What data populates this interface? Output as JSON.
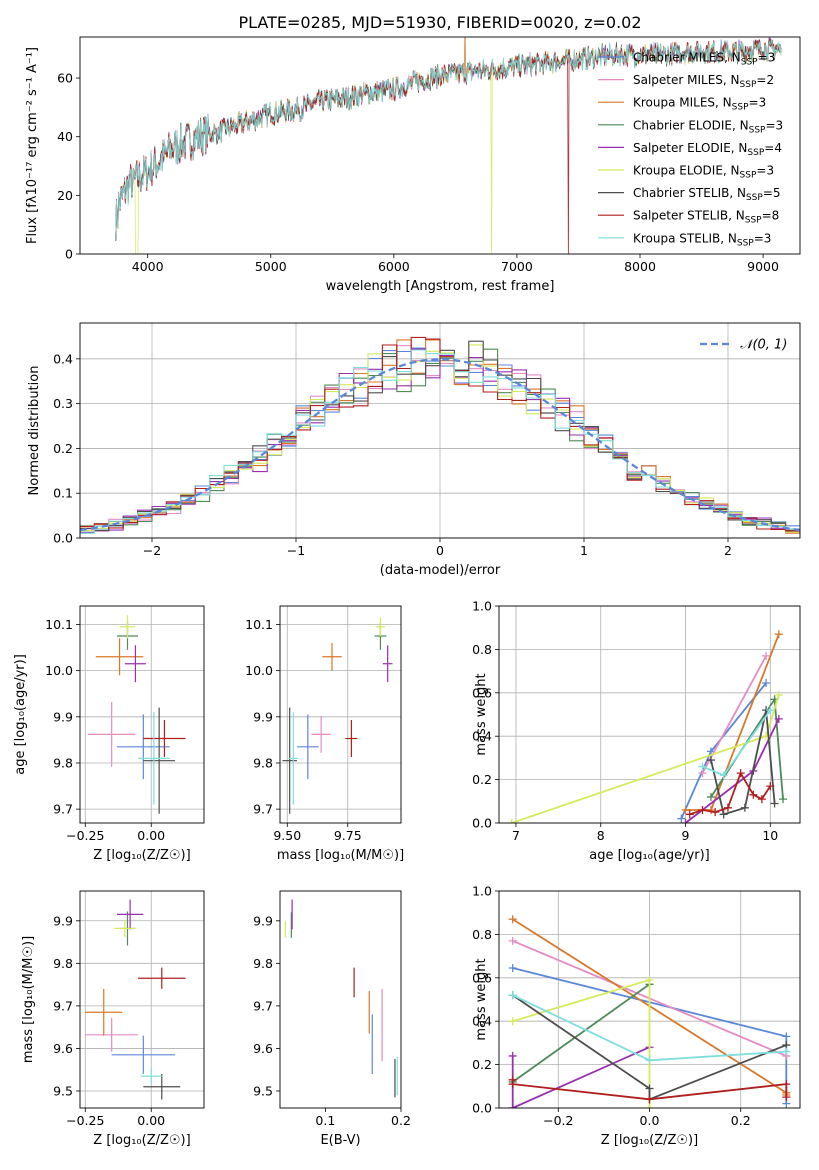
{
  "title": "PLATE=0285, MJD=51930, FIBERID=0020, z=0.02",
  "colors": {
    "Chabrier MILES": "#5b87d9",
    "Salpeter MILES": "#e58bc4",
    "Kroupa MILES": "#d9772a",
    "Chabrier ELODIE": "#4f8a5a",
    "Salpeter ELODIE": "#9a2fb0",
    "Kroupa ELODIE": "#d6ea5a",
    "Chabrier STELIB": "#4d4d4d",
    "Salpeter STELIB": "#b01e1e",
    "Kroupa STELIB": "#7fdede",
    "gaussian": "#5b87d9"
  },
  "chart_data": [
    {
      "id": "spectrum",
      "type": "line",
      "title": "PLATE=0285, MJD=51930, FIBERID=0020, z=0.02",
      "xlabel": "wavelength [Angstrom, rest frame]",
      "ylabel": "Flux [fλ10⁻¹⁷ erg cm⁻² s⁻¹ A⁻¹]",
      "xlim": [
        3450,
        9300
      ],
      "ylim": [
        0,
        74
      ],
      "xticks": [
        "4000",
        "5000",
        "6000",
        "7000",
        "8000",
        "9000"
      ],
      "yticks": [
        "0",
        "20",
        "40",
        "60"
      ],
      "grid": false,
      "legend_position": "top-right",
      "legend": [
        {
          "model": "Chabrier MILES",
          "n": "3"
        },
        {
          "model": "Salpeter MILES",
          "n": "2"
        },
        {
          "model": "Kroupa MILES",
          "n": "3"
        },
        {
          "model": "Chabrier ELODIE",
          "n": "3"
        },
        {
          "model": "Salpeter ELODIE",
          "n": "4"
        },
        {
          "model": "Kroupa ELODIE",
          "n": "3"
        },
        {
          "model": "Chabrier STELIB",
          "n": "5"
        },
        {
          "model": "Salpeter STELIB",
          "n": "8"
        },
        {
          "model": "Kroupa STELIB",
          "n": "3"
        }
      ],
      "continuum": {
        "wavelength": [
          3740,
          3850,
          4000,
          4200,
          4400,
          4600,
          4800,
          5000,
          5200,
          5400,
          5600,
          5800,
          6000,
          6200,
          6400,
          6600,
          6800,
          7000,
          7200,
          7400,
          7600,
          7800,
          8000,
          8200,
          8400,
          8600,
          8800,
          9000,
          9200
        ],
        "flux": [
          15,
          24,
          28,
          36,
          40,
          42,
          45,
          48,
          49,
          52,
          53,
          55,
          56,
          59,
          61,
          62,
          63,
          64,
          65,
          66,
          67,
          68,
          68,
          68,
          69,
          69,
          69,
          70,
          70
        ]
      }
    },
    {
      "id": "residuals",
      "type": "histogram",
      "xlabel": "(data-model)/error",
      "ylabel": "Normed distribution",
      "xlim": [
        -2.5,
        2.5
      ],
      "ylim": [
        0,
        0.48
      ],
      "xticks": [
        "−2",
        "−1",
        "0",
        "1",
        "2"
      ],
      "yticks": [
        "0.0",
        "0.1",
        "0.2",
        "0.3",
        "0.4"
      ],
      "grid": true,
      "legend_position": "top-right",
      "gaussian_label": "𝒩(0, 1)",
      "bin_width": 0.1,
      "bin_start": -2.5
    },
    {
      "id": "age-vs-Z",
      "type": "scatter",
      "xlabel": "Z [log₁₀(Z/Z☉)]",
      "ylabel": "age  [log₁₀(age/yr)]",
      "xlim": [
        -0.27,
        0.2
      ],
      "ylim": [
        9.67,
        10.14
      ],
      "xticks": [
        {
          "v": -0.25,
          "t": "−0.25"
        },
        {
          "v": 0,
          "t": "0.00"
        }
      ],
      "yticks": [
        {
          "v": 9.7,
          "t": "9.7"
        },
        {
          "v": 9.8,
          "t": "9.8"
        },
        {
          "v": 9.9,
          "t": "9.9"
        },
        {
          "v": 10.0,
          "t": "10.0"
        },
        {
          "v": 10.1,
          "t": "10.1"
        }
      ],
      "grid": true,
      "points": [
        {
          "model": "Chabrier MILES",
          "x": -0.03,
          "y": 9.835,
          "xerr": 0.1,
          "yerr": 0.07
        },
        {
          "model": "Salpeter MILES",
          "x": -0.15,
          "y": 9.862,
          "xerr": 0.09,
          "yerr": 0.07
        },
        {
          "model": "Kroupa MILES",
          "x": -0.12,
          "y": 10.03,
          "xerr": 0.09,
          "yerr": 0.04
        },
        {
          "model": "Chabrier ELODIE",
          "x": -0.09,
          "y": 10.075,
          "xerr": 0.04,
          "yerr": 0.03
        },
        {
          "model": "Salpeter ELODIE",
          "x": -0.06,
          "y": 10.015,
          "xerr": 0.04,
          "yerr": 0.04
        },
        {
          "model": "Kroupa ELODIE",
          "x": -0.09,
          "y": 10.095,
          "xerr": 0.03,
          "yerr": 0.025
        },
        {
          "model": "Chabrier STELIB",
          "x": 0.03,
          "y": 9.805,
          "xerr": 0.06,
          "yerr": 0.115
        },
        {
          "model": "Salpeter STELIB",
          "x": 0.05,
          "y": 9.853,
          "xerr": 0.08,
          "yerr": 0.04
        },
        {
          "model": "Kroupa STELIB",
          "x": 0.01,
          "y": 9.81,
          "xerr": 0.06,
          "yerr": 0.1
        }
      ]
    },
    {
      "id": "age-vs-mass",
      "type": "scatter",
      "xlabel": "mass [log₁₀(M/M☉)]",
      "ylabel": "",
      "xlim": [
        9.47,
        9.97
      ],
      "ylim": [
        9.67,
        10.14
      ],
      "xticks": [
        {
          "v": 9.5,
          "t": "9.50"
        },
        {
          "v": 9.75,
          "t": "9.75"
        }
      ],
      "yticks": [
        {
          "v": 9.7,
          "t": "9.7"
        },
        {
          "v": 9.8,
          "t": "9.8"
        },
        {
          "v": 9.9,
          "t": "9.9"
        },
        {
          "v": 10.0,
          "t": "10.0"
        },
        {
          "v": 10.1,
          "t": "10.1"
        }
      ],
      "grid": true,
      "points": [
        {
          "model": "Chabrier MILES",
          "x": 9.585,
          "y": 9.835,
          "xerr": 0.045,
          "yerr": 0.07
        },
        {
          "model": "Salpeter MILES",
          "x": 9.64,
          "y": 9.862,
          "xerr": 0.04,
          "yerr": 0.04
        },
        {
          "model": "Kroupa MILES",
          "x": 9.685,
          "y": 10.03,
          "xerr": 0.04,
          "yerr": 0.03
        },
        {
          "model": "Chabrier ELODIE",
          "x": 9.885,
          "y": 10.075,
          "xerr": 0.025,
          "yerr": 0.03
        },
        {
          "model": "Salpeter ELODIE",
          "x": 9.915,
          "y": 10.015,
          "xerr": 0.02,
          "yerr": 0.04
        },
        {
          "model": "Kroupa ELODIE",
          "x": 9.885,
          "y": 10.095,
          "xerr": 0.02,
          "yerr": 0.02
        },
        {
          "model": "Chabrier STELIB",
          "x": 9.51,
          "y": 9.805,
          "xerr": 0.03,
          "yerr": 0.115
        },
        {
          "model": "Salpeter STELIB",
          "x": 9.765,
          "y": 9.853,
          "xerr": 0.025,
          "yerr": 0.04
        },
        {
          "model": "Kroupa STELIB",
          "x": 9.525,
          "y": 9.81,
          "xerr": 0.02,
          "yerr": 0.1
        }
      ]
    },
    {
      "id": "weight-vs-age",
      "type": "line",
      "xlabel": "age  [log₁₀(age/yr)]",
      "ylabel": "mass weight",
      "xlim": [
        6.8,
        10.35
      ],
      "ylim": [
        0,
        1.0
      ],
      "xticks": [
        {
          "v": 7,
          "t": "7"
        },
        {
          "v": 8,
          "t": "8"
        },
        {
          "v": 9,
          "t": "9"
        },
        {
          "v": 10,
          "t": "10"
        }
      ],
      "yticks": [
        {
          "v": 0,
          "t": "0.0"
        },
        {
          "v": 0.2,
          "t": "0.2"
        },
        {
          "v": 0.4,
          "t": "0.4"
        },
        {
          "v": 0.6,
          "t": "0.6"
        },
        {
          "v": 0.8,
          "t": "0.8"
        },
        {
          "v": 1.0,
          "t": "1.0"
        }
      ],
      "grid": true,
      "series": [
        {
          "model": "Chabrier MILES",
          "x": [
            8.95,
            9.3,
            9.95
          ],
          "y": [
            0.02,
            0.33,
            0.645
          ]
        },
        {
          "model": "Salpeter MILES",
          "x": [
            9.2,
            9.95
          ],
          "y": [
            0.23,
            0.77
          ]
        },
        {
          "model": "Kroupa MILES",
          "x": [
            9.0,
            9.3,
            10.1
          ],
          "y": [
            0.06,
            0.06,
            0.87
          ]
        },
        {
          "model": "Chabrier ELODIE",
          "x": [
            9.3,
            10.05,
            10.15
          ],
          "y": [
            0.12,
            0.57,
            0.11
          ]
        },
        {
          "model": "Salpeter ELODIE",
          "x": [
            9.0,
            9.8,
            10.1
          ],
          "y": [
            0.0,
            0.24,
            0.48
          ]
        },
        {
          "model": "Kroupa ELODIE",
          "x": [
            6.95,
            9.95,
            10.1
          ],
          "y": [
            0.0,
            0.4,
            0.59
          ]
        },
        {
          "model": "Chabrier STELIB",
          "x": [
            9.3,
            9.45,
            9.7,
            9.95,
            10.05
          ],
          "y": [
            0.29,
            0.04,
            0.07,
            0.52,
            0.09
          ]
        },
        {
          "model": "Salpeter STELIB",
          "x": [
            9.05,
            9.2,
            9.35,
            9.5,
            9.65,
            9.8,
            9.9,
            10.0
          ],
          "y": [
            0.04,
            0.06,
            0.05,
            0.07,
            0.23,
            0.13,
            0.11,
            0.17
          ]
        },
        {
          "model": "Kroupa STELIB",
          "x": [
            9.2,
            9.45,
            10.0
          ],
          "y": [
            0.26,
            0.22,
            0.52
          ]
        }
      ]
    },
    {
      "id": "mass-vs-Z",
      "type": "scatter",
      "xlabel": "Z [log₁₀(Z/Z☉)]",
      "ylabel": "mass [log₁₀(M/M☉)]",
      "xlim": [
        -0.27,
        0.2
      ],
      "ylim": [
        9.46,
        9.97
      ],
      "xticks": [
        {
          "v": -0.25,
          "t": "−0.25"
        },
        {
          "v": 0,
          "t": "0.00"
        }
      ],
      "yticks": [
        {
          "v": 9.5,
          "t": "9.5"
        },
        {
          "v": 9.6,
          "t": "9.6"
        },
        {
          "v": 9.7,
          "t": "9.7"
        },
        {
          "v": 9.8,
          "t": "9.8"
        },
        {
          "v": 9.9,
          "t": "9.9"
        }
      ],
      "grid": true,
      "points": [
        {
          "model": "Chabrier MILES",
          "x": -0.03,
          "y": 9.585,
          "xerr": 0.12,
          "yerr": 0.045
        },
        {
          "model": "Salpeter MILES",
          "x": -0.15,
          "y": 9.632,
          "xerr": 0.1,
          "yerr": 0.04
        },
        {
          "model": "Kroupa MILES",
          "x": -0.18,
          "y": 9.685,
          "xerr": 0.07,
          "yerr": 0.055
        },
        {
          "model": "Chabrier ELODIE",
          "x": -0.09,
          "y": 9.882,
          "xerr": 0.03,
          "yerr": 0.04
        },
        {
          "model": "Salpeter ELODIE",
          "x": -0.08,
          "y": 9.915,
          "xerr": 0.05,
          "yerr": 0.035
        },
        {
          "model": "Kroupa ELODIE",
          "x": -0.1,
          "y": 9.882,
          "xerr": 0.04,
          "yerr": 0.02
        },
        {
          "model": "Chabrier STELIB",
          "x": 0.04,
          "y": 9.51,
          "xerr": 0.07,
          "yerr": 0.03
        },
        {
          "model": "Salpeter STELIB",
          "x": 0.04,
          "y": 9.765,
          "xerr": 0.09,
          "yerr": 0.025
        },
        {
          "model": "Kroupa STELIB",
          "x": 0.0,
          "y": 9.535,
          "xerr": 0.04,
          "yerr": 0.02
        }
      ]
    },
    {
      "id": "mass-vs-EBV",
      "type": "scatter",
      "xlabel": "E(B-V)",
      "ylabel": "",
      "xlim": [
        0.04,
        0.2
      ],
      "ylim": [
        9.46,
        9.97
      ],
      "xticks": [
        {
          "v": 0.1,
          "t": "0.1"
        },
        {
          "v": 0.2,
          "t": "0.2"
        }
      ],
      "yticks": [
        {
          "v": 9.5,
          "t": "9.5"
        },
        {
          "v": 9.6,
          "t": "9.6"
        },
        {
          "v": 9.7,
          "t": "9.7"
        },
        {
          "v": 9.8,
          "t": "9.8"
        },
        {
          "v": 9.9,
          "t": "9.9"
        }
      ],
      "grid": false,
      "points": [
        {
          "model": "Chabrier MILES",
          "x": 0.162,
          "y": 9.61,
          "xerr": 0.0,
          "yerr": 0.07
        },
        {
          "model": "Salpeter MILES",
          "x": 0.175,
          "y": 9.655,
          "xerr": 0.0,
          "yerr": 0.085
        },
        {
          "model": "Kroupa MILES",
          "x": 0.158,
          "y": 9.685,
          "xerr": 0.0,
          "yerr": 0.05
        },
        {
          "model": "Chabrier ELODIE",
          "x": 0.055,
          "y": 9.89,
          "xerr": 0.0,
          "yerr": 0.03
        },
        {
          "model": "Salpeter ELODIE",
          "x": 0.056,
          "y": 9.915,
          "xerr": 0.0,
          "yerr": 0.035
        },
        {
          "model": "Kroupa ELODIE",
          "x": 0.047,
          "y": 9.88,
          "xerr": 0.0,
          "yerr": 0.02
        },
        {
          "model": "Chabrier STELIB",
          "x": 0.192,
          "y": 9.53,
          "xerr": 0.0,
          "yerr": 0.045
        },
        {
          "model": "Salpeter STELIB",
          "x": 0.138,
          "y": 9.755,
          "xerr": 0.0,
          "yerr": 0.035
        },
        {
          "model": "Kroupa STELIB",
          "x": 0.195,
          "y": 9.535,
          "xerr": 0.0,
          "yerr": 0.045
        }
      ]
    },
    {
      "id": "weight-vs-Z",
      "type": "line",
      "xlabel": "Z [log₁₀(Z/Z☉)]",
      "ylabel": "mass weight",
      "xlim": [
        -0.33,
        0.33
      ],
      "ylim": [
        0,
        1.0
      ],
      "xticks": [
        {
          "v": -0.2,
          "t": "−0.2"
        },
        {
          "v": 0.0,
          "t": "0.0"
        },
        {
          "v": 0.2,
          "t": "0.2"
        }
      ],
      "yticks": [
        {
          "v": 0,
          "t": "0.0"
        },
        {
          "v": 0.2,
          "t": "0.2"
        },
        {
          "v": 0.4,
          "t": "0.4"
        },
        {
          "v": 0.6,
          "t": "0.6"
        },
        {
          "v": 0.8,
          "t": "0.8"
        },
        {
          "v": 1.0,
          "t": "1.0"
        }
      ],
      "grid": true,
      "series": [
        {
          "model": "Chabrier MILES",
          "x": [
            -0.3,
            0.3,
            0.3
          ],
          "y": [
            0.645,
            0.33,
            0.02
          ]
        },
        {
          "model": "Salpeter MILES",
          "x": [
            -0.3,
            0.3
          ],
          "y": [
            0.77,
            0.24
          ]
        },
        {
          "model": "Kroupa MILES",
          "x": [
            -0.3,
            0.3,
            0.3
          ],
          "y": [
            0.87,
            0.07,
            0.06
          ]
        },
        {
          "model": "Chabrier ELODIE",
          "x": [
            -0.3,
            -0.3,
            0.0
          ],
          "y": [
            0.11,
            0.12,
            0.57
          ]
        },
        {
          "model": "Salpeter ELODIE",
          "x": [
            -0.3,
            -0.3,
            -0.3,
            0.0
          ],
          "y": [
            0.0,
            0.24,
            0.0,
            0.28
          ]
        },
        {
          "model": "Kroupa ELODIE",
          "x": [
            -0.3,
            0.0,
            0.0
          ],
          "y": [
            0.4,
            0.59,
            0.0
          ]
        },
        {
          "model": "Chabrier STELIB",
          "x": [
            -0.3,
            0.0,
            0.0,
            0.3
          ],
          "y": [
            0.52,
            0.09,
            0.04,
            0.29
          ]
        },
        {
          "model": "Salpeter STELIB",
          "x": [
            -0.3,
            -0.3,
            0.0,
            0.3,
            0.3
          ],
          "y": [
            0.13,
            0.11,
            0.04,
            0.11,
            0.05
          ]
        },
        {
          "model": "Kroupa STELIB",
          "x": [
            -0.3,
            0.0,
            0.3
          ],
          "y": [
            0.52,
            0.22,
            0.26
          ]
        }
      ]
    }
  ]
}
